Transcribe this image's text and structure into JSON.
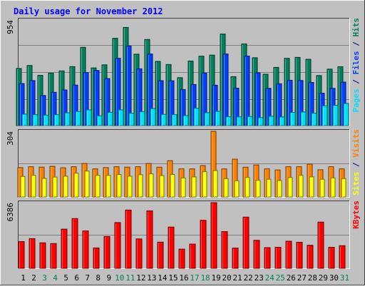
{
  "chart_data": [
    {
      "type": "bar",
      "title": "Daily usage for November 2012",
      "categories": [
        "1",
        "2",
        "3",
        "4",
        "5",
        "6",
        "7",
        "8",
        "9",
        "10",
        "11",
        "12",
        "13",
        "14",
        "15",
        "16",
        "17",
        "18",
        "19",
        "20",
        "21",
        "22",
        "23",
        "24",
        "25",
        "26",
        "27",
        "28",
        "29",
        "30",
        "31"
      ],
      "weekend_days": [
        "3",
        "4",
        "10",
        "11",
        "17",
        "18",
        "24",
        "25",
        "31"
      ],
      "ymax_label": "954",
      "ylim": [
        0,
        954
      ],
      "legend": [
        "Pages",
        "Files",
        "Hits"
      ],
      "series": [
        {
          "name": "Hits",
          "color": "#00805c",
          "values": [
            516,
            543,
            454,
            474,
            494,
            533,
            707,
            521,
            549,
            789,
            887,
            645,
            778,
            580,
            552,
            433,
            583,
            627,
            637,
            827,
            442,
            738,
            613,
            464,
            526,
            608,
            616,
            599,
            452,
            510,
            532
          ]
        },
        {
          "name": "Files",
          "color": "#0040ff",
          "values": [
            380,
            407,
            272,
            301,
            322,
            366,
            479,
            498,
            425,
            608,
            719,
            513,
            647,
            406,
            405,
            326,
            371,
            475,
            365,
            647,
            338,
            628,
            477,
            337,
            378,
            409,
            408,
            390,
            293,
            336,
            393
          ]
        },
        {
          "name": "Pages",
          "color": "#00e0ff",
          "values": [
            104,
            99,
            95,
            99,
            116,
            128,
            142,
            89,
            120,
            142,
            112,
            125,
            153,
            101,
            99,
            91,
            157,
            117,
            129,
            80,
            79,
            82,
            72,
            85,
            78,
            119,
            123,
            112,
            178,
            183,
            200
          ]
        }
      ]
    },
    {
      "type": "bar",
      "ymax_label": "304",
      "ylim": [
        0,
        304
      ],
      "legend": [
        "Sites",
        "Visits"
      ],
      "series": [
        {
          "name": "Visits",
          "color": "#ff8000",
          "values": [
            136,
            140,
            138,
            142,
            135,
            140,
            155,
            130,
            136,
            140,
            138,
            140,
            155,
            138,
            168,
            130,
            130,
            145,
            304,
            130,
            175,
            138,
            148,
            130,
            125,
            140,
            140,
            152,
            126,
            140,
            130
          ]
        },
        {
          "name": "Sites",
          "color": "#ffff00",
          "values": [
            95,
            100,
            86,
            92,
            96,
            110,
            120,
            100,
            100,
            104,
            96,
            103,
            107,
            99,
            104,
            88,
            93,
            117,
            122,
            85,
            75,
            90,
            77,
            82,
            76,
            90,
            100,
            93,
            82,
            88,
            85
          ]
        }
      ]
    },
    {
      "type": "bar",
      "ymax_label": "6386",
      "ylim": [
        0,
        6386
      ],
      "legend": [
        "KBytes"
      ],
      "series": [
        {
          "name": "KBytes",
          "color": "#ff0000",
          "values": [
            2604,
            2888,
            2479,
            2409,
            3813,
            4841,
            3639,
            1983,
            3097,
            4451,
            5666,
            2860,
            5590,
            2547,
            4014,
            1866,
            2356,
            4671,
            6386,
            3569,
            1970,
            4980,
            2724,
            2012,
            2049,
            2636,
            2535,
            2242,
            4495,
            2042,
            2200
          ]
        }
      ]
    }
  ]
}
